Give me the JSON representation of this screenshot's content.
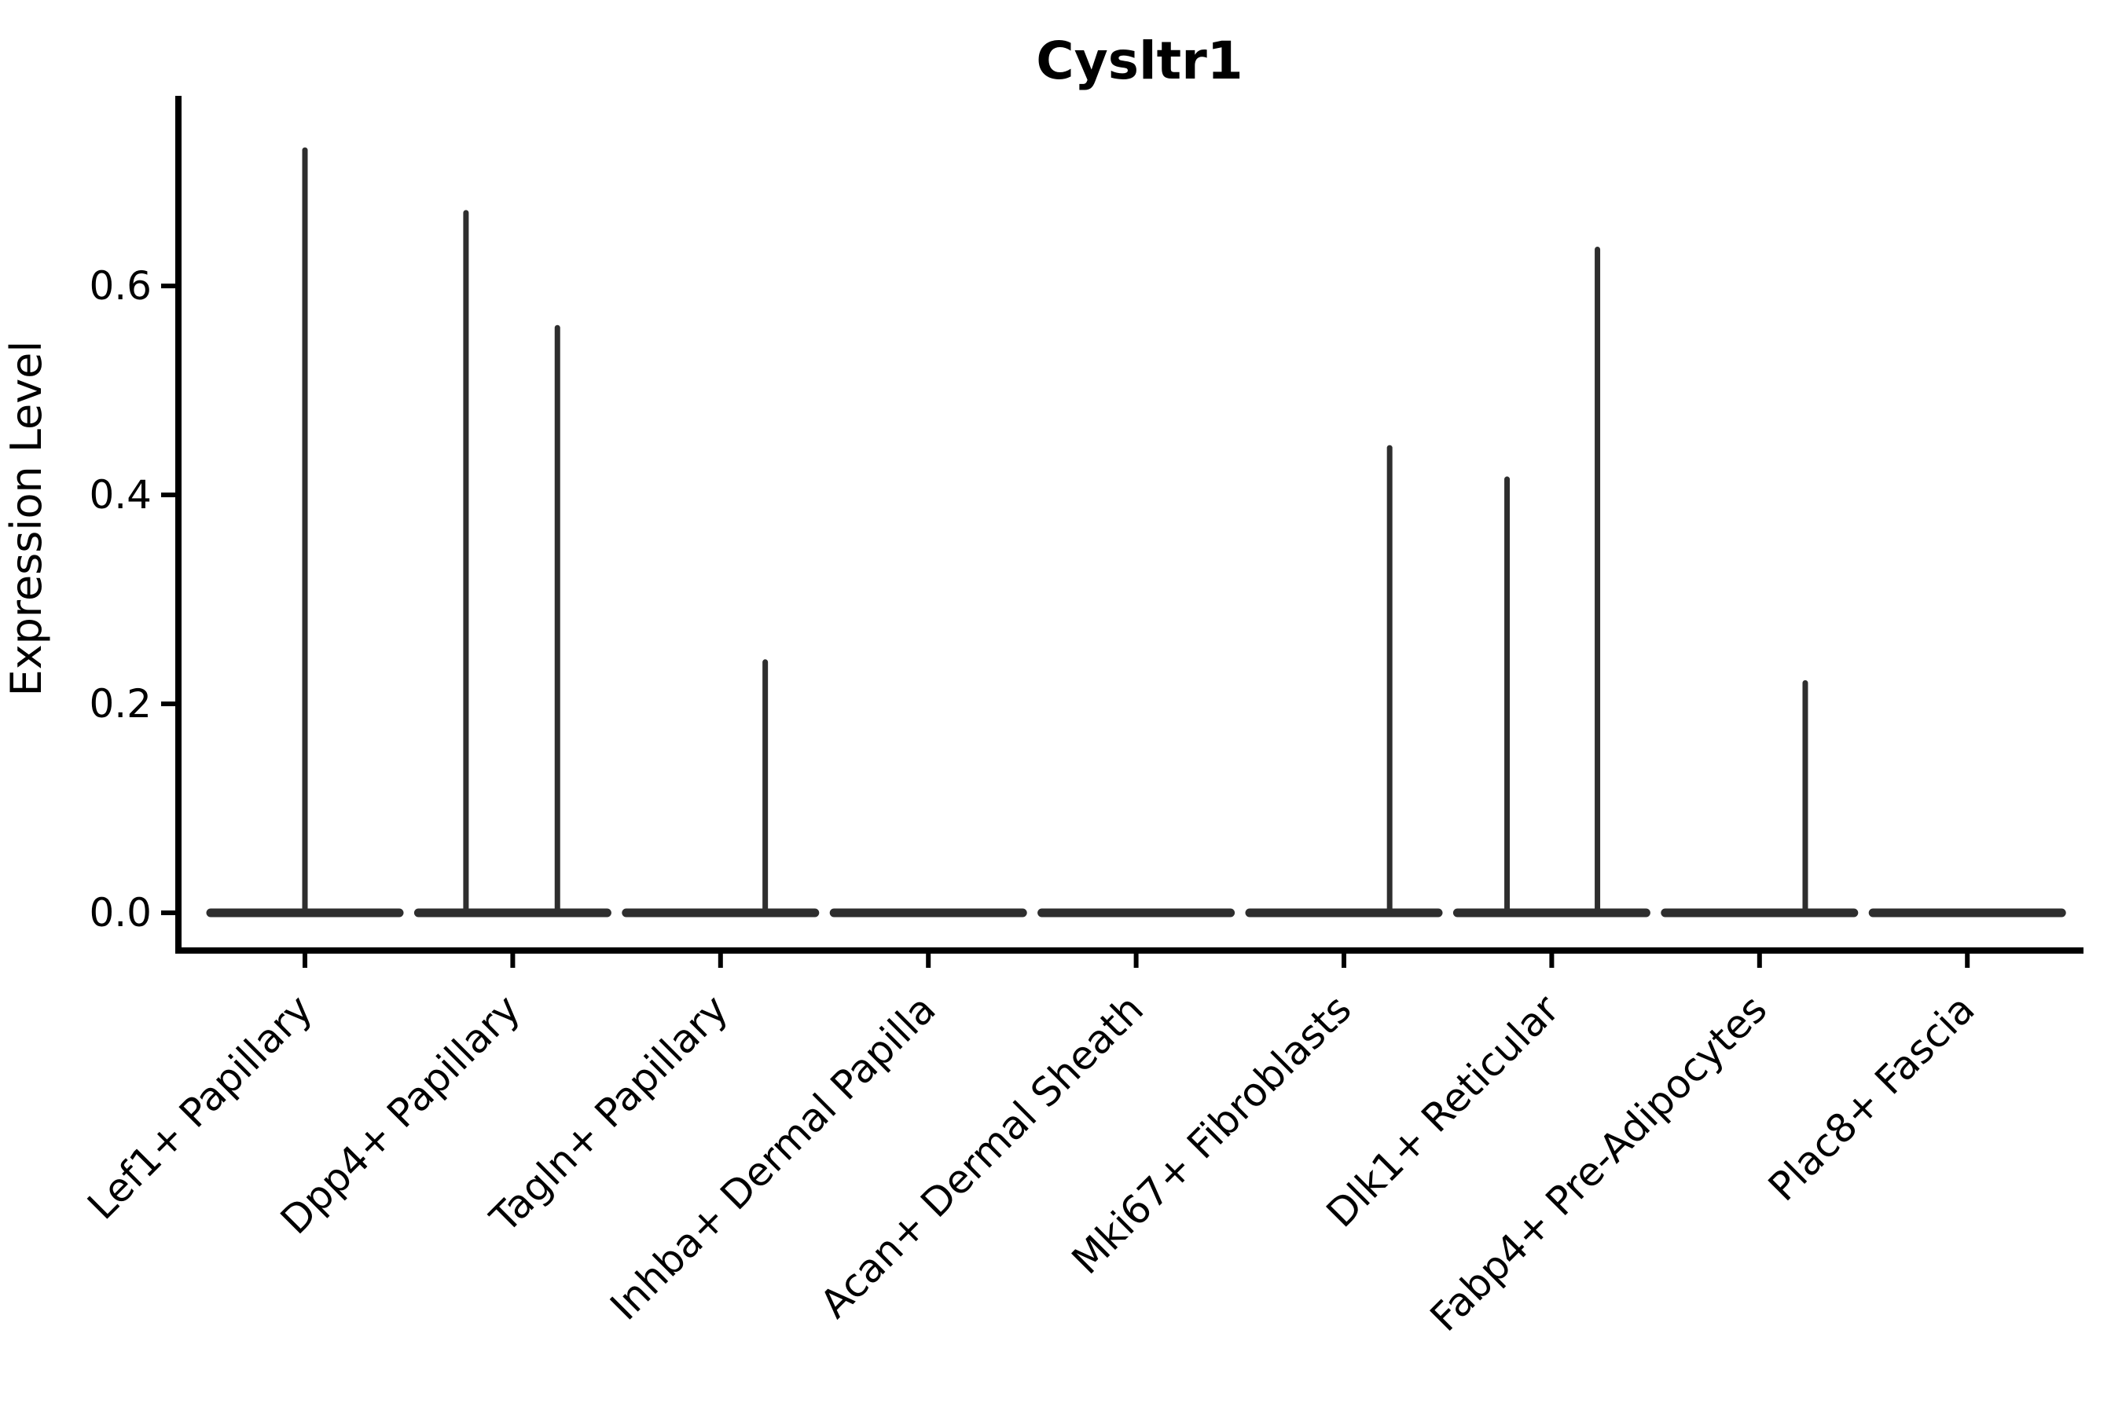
{
  "figure": {
    "background": "#ffffff",
    "axis_color": "#000000",
    "violin_color": "#2e2e2e"
  },
  "chart_data": {
    "type": "violin",
    "title": "Cysltr1",
    "xlabel": "",
    "ylabel": "Expression Level",
    "legend_position": "none",
    "grid": false,
    "ylim": [
      -0.036,
      0.784
    ],
    "ytick_labels": [
      "0.0",
      "0.2",
      "0.4",
      "0.6"
    ],
    "ytick_values": [
      0.0,
      0.2,
      0.4,
      0.6
    ],
    "categories": [
      "Lef1+ Papillary",
      "Dpp4+ Papillary",
      "Tagln+ Papillary",
      "Inhba+ Dermal Papilla",
      "Acan+ Dermal Sheath",
      "Mki67+ Fibroblasts",
      "Dlk1+ Reticular",
      "Fabp4+ Pre-Adipocytes",
      "Plac8+ Fascia"
    ],
    "violins": [
      {
        "category": "Lef1+ Papillary",
        "body_at_zero": true,
        "spikes": [
          {
            "offset_frac": 0.0,
            "max": 0.73
          }
        ]
      },
      {
        "category": "Dpp4+ Papillary",
        "body_at_zero": true,
        "spikes": [
          {
            "offset_frac": -0.225,
            "max": 0.67
          },
          {
            "offset_frac": 0.215,
            "max": 0.56
          }
        ]
      },
      {
        "category": "Tagln+ Papillary",
        "body_at_zero": true,
        "spikes": [
          {
            "offset_frac": 0.215,
            "max": 0.24
          }
        ]
      },
      {
        "category": "Inhba+ Dermal Papilla",
        "body_at_zero": true,
        "spikes": []
      },
      {
        "category": "Acan+ Dermal Sheath",
        "body_at_zero": true,
        "spikes": []
      },
      {
        "category": "Mki67+ Fibroblasts",
        "body_at_zero": true,
        "spikes": [
          {
            "offset_frac": 0.22,
            "max": 0.445
          }
        ]
      },
      {
        "category": "Dlk1+ Reticular",
        "body_at_zero": true,
        "spikes": [
          {
            "offset_frac": -0.215,
            "max": 0.415
          },
          {
            "offset_frac": 0.22,
            "max": 0.635
          }
        ]
      },
      {
        "category": "Fabp4+ Pre-Adipocytes",
        "body_at_zero": true,
        "spikes": [
          {
            "offset_frac": 0.22,
            "max": 0.22
          }
        ]
      },
      {
        "category": "Plac8+ Fascia",
        "body_at_zero": true,
        "spikes": []
      }
    ]
  }
}
